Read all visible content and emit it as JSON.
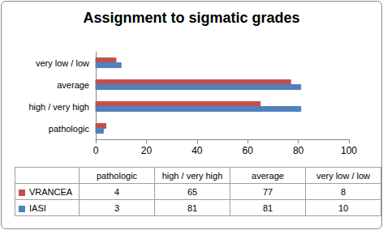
{
  "chart_data": {
    "type": "bar",
    "orientation": "horizontal",
    "title": "Assignment to sigmatic grades",
    "categories": [
      "pathologic",
      "high / very high",
      "average",
      "very low / low"
    ],
    "series": [
      {
        "name": "VRANCEA",
        "color": "#c0504d",
        "values": [
          4,
          65,
          77,
          8
        ]
      },
      {
        "name": "IASI",
        "color": "#4f81bd",
        "values": [
          3,
          81,
          81,
          10
        ]
      }
    ],
    "xlim": [
      0,
      100
    ],
    "xticks": [
      0,
      20,
      40,
      60,
      80,
      100
    ],
    "grid": false
  }
}
